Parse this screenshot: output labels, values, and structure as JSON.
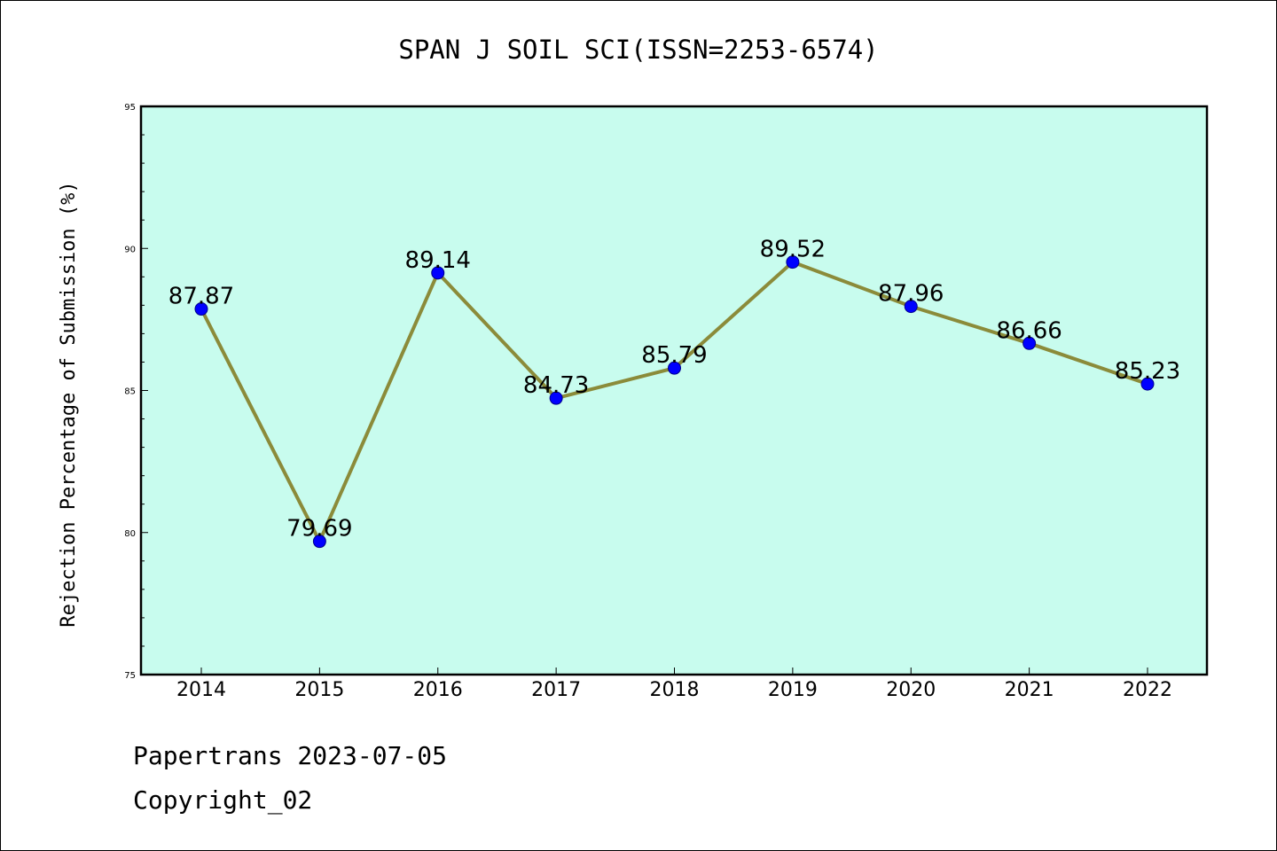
{
  "chart_data": {
    "type": "line",
    "title": "SPAN J SOIL SCI(ISSN=2253-6574)",
    "xlabel": "",
    "ylabel": "Rejection Percentage of Submission (%)",
    "categories": [
      "2014",
      "2015",
      "2016",
      "2017",
      "2018",
      "2019",
      "2020",
      "2021",
      "2022"
    ],
    "series": [
      {
        "values": [
          87.87,
          79.69,
          89.14,
          84.73,
          85.79,
          89.52,
          87.96,
          86.66,
          85.23
        ],
        "data_labels": [
          "87.87",
          "79.69",
          "89.14",
          "84.73",
          "85.79",
          "89.52",
          "87.96",
          "86.66",
          "85.23"
        ]
      }
    ],
    "ylim": [
      75,
      95
    ],
    "y_major_ticks": [
      75,
      80,
      85,
      90,
      95
    ],
    "y_minor_step": 1,
    "grid": false,
    "colors": {
      "plot_background": "#c8fcee",
      "line": "#8b8b3a",
      "marker": "#0000ff",
      "axes": "#000000"
    }
  },
  "footer": {
    "date_text": "Papertrans 2023-07-05",
    "copyright_text": "Copyright_02"
  }
}
